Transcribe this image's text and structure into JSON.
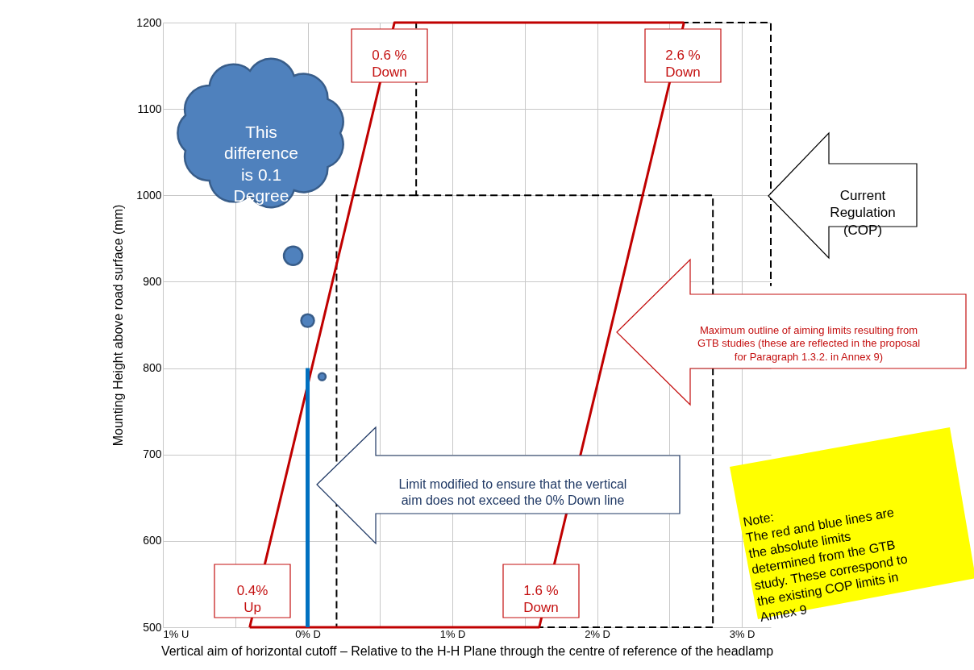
{
  "chart_data": {
    "type": "line",
    "xlabel": "Vertical aim of horizontal cutoff – Relative to the H-H Plane through the centre of reference of the headlamp",
    "ylabel": "Mounting Height above road surface (mm)",
    "xlim": [
      -1,
      3.2
    ],
    "ylim": [
      500,
      1200
    ],
    "xticks": [
      {
        "value": -1,
        "label": "1% U"
      },
      {
        "value": -0.5,
        "label": null
      },
      {
        "value": 0,
        "label": "0% D"
      },
      {
        "value": 0.5,
        "label": null
      },
      {
        "value": 1,
        "label": "1% D"
      },
      {
        "value": 1.5,
        "label": null
      },
      {
        "value": 2,
        "label": "2% D"
      },
      {
        "value": 2.5,
        "label": null
      },
      {
        "value": 3,
        "label": "3% D"
      }
    ],
    "yticks": [
      500,
      600,
      700,
      800,
      900,
      1000,
      1100,
      1200
    ],
    "grid": true,
    "series": [
      {
        "color": "#000000",
        "line_style": "dashed",
        "x": [
          0.75,
          0.2,
          0.2,
          2.8,
          2.8,
          0.75,
          0.75,
          3.2,
          3.2
        ],
        "values": [
          1000,
          1000,
          500,
          500,
          1000,
          1000,
          1200,
          1200,
          895
        ]
      },
      {
        "color": "#c00000",
        "x": [
          -0.4,
          0.6,
          2.6
        ],
        "values": [
          500,
          1200,
          1200
        ]
      },
      {
        "color": "#c00000",
        "x": [
          -0.4,
          1.6,
          2.6
        ],
        "values": [
          500,
          500,
          1200
        ]
      },
      {
        "color": "#0070c0",
        "x": [
          0,
          0
        ],
        "values": [
          500,
          800
        ]
      },
      {
        "type": "bubble",
        "color": "#4f81bd",
        "x": [
          -0.1,
          0,
          0.1
        ],
        "values": [
          930,
          855,
          790
        ],
        "sizes": [
          1,
          0.48,
          0.15
        ]
      }
    ],
    "annotations": [
      "0.6 %\nDown",
      "2.6 %\nDown",
      "0.4%\nUp",
      "1.6 %\nDown",
      "This\ndifference\nis 0.1\nDegree",
      "Current\nRegulation\n(COP)",
      "Maximum outline of aiming limits resulting from\nGTB studies (these are reflected in the proposal\nfor Paragraph 1.3.2. in Annex 9)",
      "Limit modified to ensure that the vertical\naim does not exceed the 0% Down line",
      "Note:\nThe red and blue lines are\nthe absolute limits\ndetermined from the GTB\nstudy. These correspond to\nthe existing COP limits in\nAnnex 9"
    ]
  }
}
